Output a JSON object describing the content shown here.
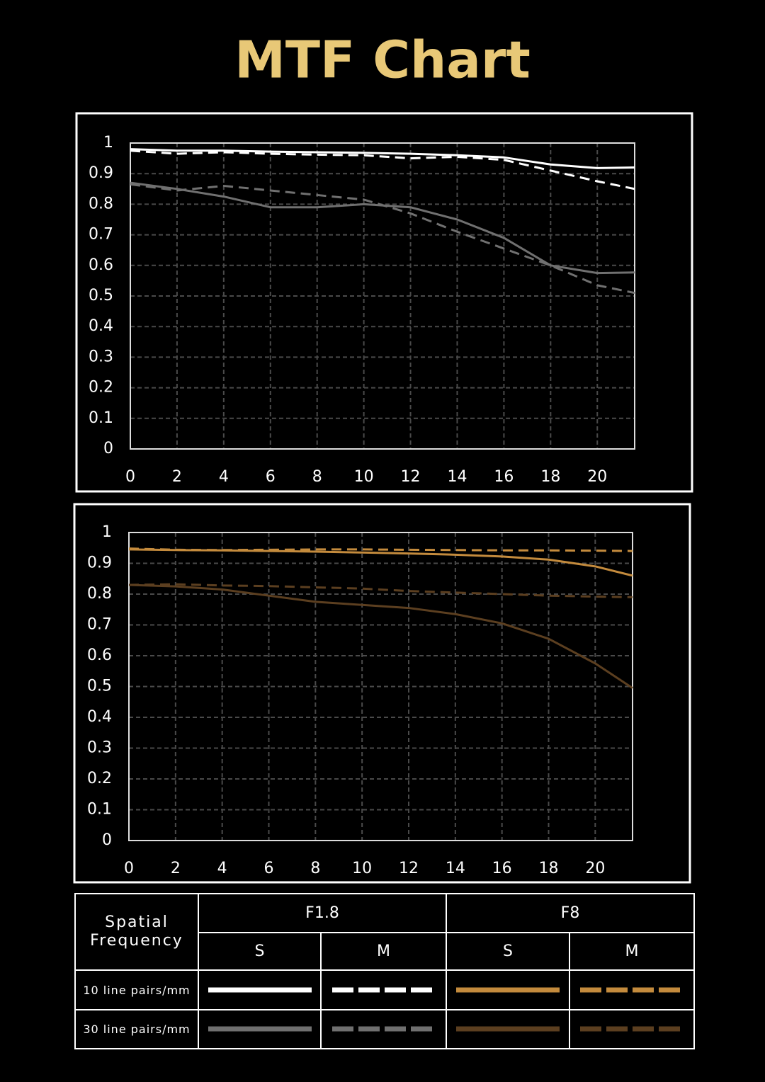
{
  "title": "MTF Chart",
  "chart_data": [
    {
      "type": "line",
      "x": [
        0,
        2,
        4,
        6,
        8,
        10,
        12,
        14,
        16,
        18,
        20,
        21.6
      ],
      "xlim": [
        0,
        21.6
      ],
      "xticks": [
        0,
        2,
        4,
        6,
        8,
        10,
        12,
        14,
        16,
        18,
        20
      ],
      "ylim": [
        0,
        1
      ],
      "yticks": [
        0,
        0.1,
        0.2,
        0.3,
        0.4,
        0.5,
        0.6,
        0.7,
        0.8,
        0.9,
        1
      ],
      "grid": true,
      "series": [
        {
          "color": "#ffffff",
          "dashed": false,
          "values": [
            0.98,
            0.975,
            0.975,
            0.972,
            0.97,
            0.968,
            0.965,
            0.96,
            0.953,
            0.93,
            0.918,
            0.92
          ]
        },
        {
          "color": "#ffffff",
          "dashed": true,
          "values": [
            0.975,
            0.965,
            0.97,
            0.965,
            0.962,
            0.96,
            0.95,
            0.955,
            0.945,
            0.91,
            0.875,
            0.85
          ]
        },
        {
          "color": "#707070",
          "dashed": false,
          "values": [
            0.87,
            0.85,
            0.825,
            0.79,
            0.79,
            0.8,
            0.79,
            0.75,
            0.69,
            0.6,
            0.575,
            0.577
          ]
        },
        {
          "color": "#707070",
          "dashed": true,
          "values": [
            0.865,
            0.845,
            0.86,
            0.845,
            0.83,
            0.815,
            0.77,
            0.71,
            0.655,
            0.6,
            0.535,
            0.51
          ]
        }
      ]
    },
    {
      "type": "line",
      "x": [
        0,
        2,
        4,
        6,
        8,
        10,
        12,
        14,
        16,
        18,
        20,
        21.6
      ],
      "xlim": [
        0,
        21.6
      ],
      "xticks": [
        0,
        2,
        4,
        6,
        8,
        10,
        12,
        14,
        16,
        18,
        20
      ],
      "ylim": [
        0,
        1
      ],
      "yticks": [
        0,
        0.1,
        0.2,
        0.3,
        0.4,
        0.5,
        0.6,
        0.7,
        0.8,
        0.9,
        1
      ],
      "grid": true,
      "series": [
        {
          "color": "#c48b3d",
          "dashed": false,
          "values": [
            0.945,
            0.943,
            0.942,
            0.94,
            0.938,
            0.935,
            0.932,
            0.928,
            0.922,
            0.912,
            0.89,
            0.86
          ]
        },
        {
          "color": "#c48b3d",
          "dashed": true,
          "values": [
            0.948,
            0.944,
            0.943,
            0.944,
            0.945,
            0.945,
            0.944,
            0.943,
            0.942,
            0.942,
            0.941,
            0.94
          ]
        },
        {
          "color": "#5c3f20",
          "dashed": false,
          "values": [
            0.83,
            0.825,
            0.815,
            0.795,
            0.775,
            0.765,
            0.755,
            0.735,
            0.705,
            0.655,
            0.575,
            0.495
          ]
        },
        {
          "color": "#5c3f20",
          "dashed": true,
          "values": [
            0.83,
            0.832,
            0.828,
            0.826,
            0.822,
            0.818,
            0.81,
            0.805,
            0.8,
            0.795,
            0.792,
            0.79
          ]
        }
      ]
    }
  ],
  "legend": {
    "header": "Spatial Frequency",
    "apertures": [
      "F1.8",
      "F8"
    ],
    "planes": [
      "S",
      "M",
      "S",
      "M"
    ],
    "rows": [
      "10 line pairs/mm",
      "30 line pairs/mm"
    ]
  }
}
